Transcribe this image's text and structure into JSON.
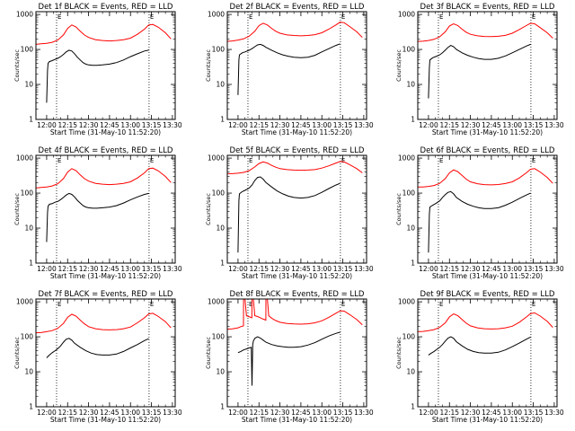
{
  "figure": {
    "panel_titles": [
      "Det 1f BLACK = Events, RED = LLD",
      "Det 2f BLACK = Events, RED = LLD",
      "Det 3f BLACK = Events, RED = LLD",
      "Det 4f BLACK = Events, RED = LLD",
      "Det 5f BLACK = Events, RED = LLD",
      "Det 6f BLACK = Events, RED = LLD",
      "Det 7f BLACK = Events, RED = LLD",
      "Det 8f BLACK = Events, RED = LLD",
      "Det 9f BLACK = Events, RED = LLD"
    ],
    "xlabel": "Start Time (31-May-10 11:52:20)",
    "ylabel": "Counts/sec",
    "marker_labels": [
      "E",
      "E"
    ]
  },
  "chart_data": {
    "type": "line",
    "layout": "3x3 grid of panels",
    "shared": {
      "xlabel": "Start Time (31-May-10 11:52:20)",
      "ylabel": "Counts/sec",
      "x_unit": "minutes after 12:00 on 31-May-10",
      "x_tick_labels": [
        "12:00",
        "12:15",
        "12:30",
        "12:45",
        "13:00",
        "13:15",
        "13:30"
      ],
      "x_ticks": [
        0,
        15,
        30,
        45,
        60,
        75,
        90
      ],
      "xlim": [
        -7.67,
        92
      ],
      "y_scale": "log",
      "y_tick_labels": [
        "1",
        "10",
        "100",
        "1000"
      ],
      "y_ticks": [
        1,
        10,
        100,
        1000
      ],
      "ylim": [
        1,
        1200
      ],
      "vertical_dotted_lines_x": [
        7.1,
        73.3
      ],
      "vertical_line_markers": [
        "E",
        "E"
      ],
      "series_colors": {
        "Events": "#000000",
        "LLD": "#ff0000"
      }
    },
    "panels": [
      {
        "title": "Det 1f BLACK = Events, RED = LLD",
        "events": {
          "x": [
            0,
            0.6,
            1,
            2,
            4,
            6,
            8,
            10,
            12,
            14,
            16,
            18,
            20,
            22,
            24,
            26,
            28,
            30,
            33,
            36,
            40,
            45,
            50,
            55,
            60,
            65,
            70,
            73
          ],
          "y": [
            3,
            25,
            40,
            45,
            48,
            52,
            56,
            62,
            72,
            85,
            95,
            90,
            75,
            60,
            50,
            42,
            38,
            36,
            35,
            35,
            36,
            38,
            42,
            50,
            62,
            75,
            90,
            95
          ]
        },
        "lld": {
          "x": [
            -7.7,
            -4,
            0,
            4,
            8,
            12,
            15,
            18,
            21,
            24,
            27,
            30,
            35,
            40,
            45,
            50,
            55,
            60,
            65,
            70,
            73,
            76,
            80,
            85,
            89
          ],
          "y": [
            140,
            145,
            150,
            160,
            185,
            260,
            400,
            500,
            440,
            330,
            260,
            220,
            190,
            180,
            175,
            180,
            190,
            210,
            270,
            380,
            500,
            520,
            430,
            300,
            200
          ]
        }
      },
      {
        "title": "Det 2f BLACK = Events, RED = LLD",
        "events": {
          "x": [
            0,
            0.6,
            1,
            3,
            5,
            8,
            10,
            12,
            14,
            16,
            18,
            20,
            24,
            28,
            32,
            36,
            40,
            45,
            50,
            55,
            60,
            65,
            70,
            73
          ],
          "y": [
            5,
            50,
            70,
            80,
            85,
            95,
            105,
            120,
            135,
            140,
            130,
            115,
            95,
            80,
            70,
            64,
            60,
            58,
            60,
            68,
            85,
            105,
            130,
            145
          ]
        },
        "lld": {
          "x": [
            -7.7,
            -4,
            0,
            4,
            8,
            12,
            15,
            18,
            21,
            24,
            27,
            30,
            35,
            40,
            45,
            50,
            55,
            60,
            65,
            70,
            73,
            76,
            80,
            85,
            89
          ],
          "y": [
            170,
            175,
            185,
            200,
            240,
            330,
            480,
            560,
            500,
            400,
            330,
            290,
            260,
            250,
            245,
            250,
            265,
            300,
            380,
            500,
            600,
            580,
            450,
            320,
            220
          ]
        }
      },
      {
        "title": "Det 3f BLACK = Events, RED = LLD",
        "events": {
          "x": [
            0,
            0.6,
            1,
            3,
            5,
            8,
            10,
            12,
            14,
            16,
            18,
            20,
            24,
            28,
            32,
            36,
            40,
            45,
            50,
            55,
            60,
            65,
            70,
            73
          ],
          "y": [
            4,
            30,
            50,
            58,
            62,
            70,
            80,
            95,
            115,
            130,
            120,
            100,
            80,
            68,
            60,
            55,
            52,
            52,
            56,
            65,
            80,
            100,
            125,
            140
          ]
        },
        "lld": {
          "x": [
            -7.7,
            -4,
            0,
            4,
            8,
            12,
            15,
            18,
            21,
            24,
            27,
            30,
            35,
            40,
            45,
            50,
            55,
            60,
            65,
            70,
            73,
            76,
            80,
            85,
            89
          ],
          "y": [
            170,
            172,
            180,
            195,
            230,
            320,
            470,
            540,
            480,
            380,
            310,
            270,
            245,
            235,
            232,
            238,
            252,
            290,
            370,
            480,
            560,
            540,
            420,
            300,
            210
          ]
        }
      },
      {
        "title": "Det 4f BLACK = Events, RED = LLD",
        "events": {
          "x": [
            0,
            0.6,
            1,
            2,
            4,
            6,
            8,
            10,
            12,
            14,
            16,
            18,
            20,
            22,
            24,
            26,
            28,
            30,
            33,
            36,
            40,
            45,
            50,
            55,
            60,
            65,
            70,
            73
          ],
          "y": [
            4,
            28,
            42,
            48,
            50,
            55,
            58,
            65,
            75,
            88,
            98,
            92,
            78,
            62,
            52,
            44,
            40,
            38,
            37,
            37,
            38,
            40,
            44,
            52,
            64,
            78,
            92,
            98
          ]
        },
        "lld": {
          "x": [
            -7.7,
            -4,
            0,
            4,
            8,
            12,
            15,
            18,
            21,
            24,
            27,
            30,
            35,
            40,
            45,
            50,
            55,
            60,
            65,
            70,
            73,
            76,
            80,
            85,
            89
          ],
          "y": [
            140,
            145,
            150,
            160,
            185,
            260,
            400,
            500,
            440,
            330,
            260,
            220,
            190,
            180,
            175,
            180,
            190,
            210,
            270,
            380,
            500,
            520,
            430,
            300,
            200
          ]
        }
      },
      {
        "title": "Det 5f BLACK = Events, RED = LLD",
        "events": {
          "x": [
            0,
            0.6,
            1,
            3,
            5,
            8,
            10,
            12,
            14,
            16,
            18,
            20,
            24,
            28,
            32,
            36,
            40,
            45,
            50,
            55,
            60,
            65,
            70,
            73
          ],
          "y": [
            2,
            60,
            95,
            110,
            120,
            140,
            170,
            230,
            280,
            290,
            250,
            200,
            150,
            115,
            95,
            82,
            75,
            72,
            75,
            85,
            105,
            135,
            170,
            190
          ]
        },
        "lld": {
          "x": [
            -7.7,
            -4,
            0,
            4,
            8,
            12,
            15,
            18,
            21,
            24,
            27,
            30,
            35,
            40,
            45,
            50,
            55,
            60,
            65,
            70,
            73,
            76,
            80,
            85,
            89
          ],
          "y": [
            360,
            360,
            370,
            390,
            440,
            560,
            700,
            780,
            720,
            620,
            550,
            500,
            470,
            455,
            450,
            455,
            470,
            520,
            600,
            720,
            800,
            780,
            650,
            500,
            380
          ]
        }
      },
      {
        "title": "Det 6f BLACK = Events, RED = LLD",
        "events": {
          "x": [
            0,
            0.6,
            1,
            3,
            5,
            8,
            10,
            12,
            14,
            16,
            18,
            20,
            24,
            28,
            32,
            36,
            40,
            45,
            50,
            55,
            60,
            65,
            70,
            73
          ],
          "y": [
            2,
            25,
            40,
            45,
            50,
            60,
            75,
            90,
            105,
            110,
            95,
            75,
            58,
            48,
            42,
            38,
            36,
            36,
            38,
            45,
            55,
            70,
            88,
            100
          ]
        },
        "lld": {
          "x": [
            -7.7,
            -4,
            0,
            4,
            8,
            12,
            15,
            18,
            21,
            24,
            27,
            30,
            35,
            40,
            45,
            50,
            55,
            60,
            65,
            70,
            73,
            76,
            80,
            85,
            89
          ],
          "y": [
            150,
            150,
            155,
            165,
            190,
            260,
            380,
            460,
            410,
            320,
            250,
            210,
            185,
            175,
            172,
            176,
            188,
            210,
            270,
            380,
            480,
            500,
            400,
            280,
            190
          ]
        }
      },
      {
        "title": "Det 7f BLACK = Events, RED = LLD",
        "events": {
          "x": [
            0,
            2,
            4,
            6,
            8,
            10,
            12,
            14,
            16,
            18,
            20,
            24,
            28,
            32,
            36,
            40,
            45,
            50,
            55,
            60,
            65,
            70,
            73
          ],
          "y": [
            25,
            30,
            35,
            40,
            46,
            55,
            70,
            85,
            90,
            80,
            65,
            50,
            40,
            34,
            31,
            30,
            30,
            32,
            38,
            48,
            60,
            78,
            88
          ]
        },
        "lld": {
          "x": [
            -7.7,
            -4,
            0,
            4,
            8,
            12,
            15,
            18,
            21,
            24,
            27,
            30,
            35,
            40,
            45,
            50,
            55,
            60,
            65,
            70,
            73,
            76,
            80,
            85,
            89
          ],
          "y": [
            130,
            132,
            140,
            150,
            175,
            240,
            360,
            440,
            390,
            300,
            235,
            195,
            170,
            160,
            157,
            160,
            170,
            190,
            250,
            350,
            450,
            470,
            380,
            270,
            180
          ]
        }
      },
      {
        "title": "Det 8f BLACK = Events, RED = LLD",
        "events": {
          "x": [
            0,
            2,
            4,
            6,
            8,
            9.5,
            10,
            10.5,
            11,
            12,
            14,
            16,
            18,
            20,
            24,
            28,
            32,
            36,
            40,
            45,
            50,
            55,
            60,
            65,
            70,
            73
          ],
          "y": [
            35,
            38,
            42,
            45,
            48,
            50,
            4,
            60,
            75,
            90,
            100,
            92,
            80,
            70,
            60,
            55,
            52,
            50,
            50,
            52,
            58,
            68,
            85,
            105,
            125,
            135
          ]
        },
        "lld": {
          "x": [
            -7.7,
            -4,
            0,
            2,
            3.9,
            4,
            5,
            6,
            9.9,
            10,
            11,
            12,
            14,
            16,
            18,
            19.9,
            20,
            21,
            22,
            24,
            27,
            30,
            35,
            40,
            45,
            50,
            55,
            60,
            65,
            70,
            73,
            76,
            80,
            85,
            89
          ],
          "y": [
            165,
            168,
            180,
            195,
            205,
            1200,
            1200,
            400,
            350,
            1200,
            1200,
            400,
            380,
            350,
            320,
            300,
            1200,
            1200,
            400,
            340,
            290,
            260,
            240,
            232,
            230,
            235,
            250,
            285,
            360,
            470,
            550,
            540,
            430,
            310,
            220
          ]
        }
      },
      {
        "title": "Det 9f BLACK = Events, RED = LLD",
        "events": {
          "x": [
            0,
            2,
            4,
            6,
            8,
            10,
            12,
            14,
            16,
            18,
            20,
            24,
            28,
            32,
            36,
            40,
            45,
            50,
            55,
            60,
            65,
            70,
            73
          ],
          "y": [
            30,
            34,
            38,
            44,
            50,
            60,
            75,
            92,
            100,
            90,
            72,
            55,
            44,
            38,
            35,
            34,
            34,
            36,
            42,
            52,
            66,
            85,
            98
          ]
        },
        "lld": {
          "x": [
            -7.7,
            -4,
            0,
            4,
            8,
            12,
            15,
            18,
            21,
            24,
            27,
            30,
            35,
            40,
            45,
            50,
            55,
            60,
            65,
            70,
            73,
            76,
            80,
            85,
            89
          ],
          "y": [
            140,
            142,
            150,
            160,
            185,
            250,
            370,
            450,
            400,
            310,
            245,
            205,
            180,
            170,
            167,
            170,
            180,
            200,
            260,
            365,
            460,
            480,
            390,
            275,
            185
          ]
        }
      }
    ]
  }
}
